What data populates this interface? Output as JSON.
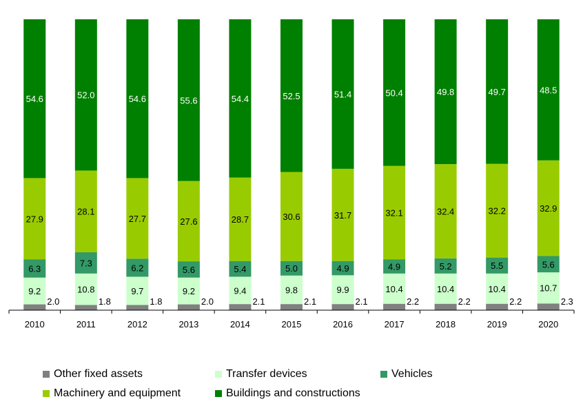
{
  "chart_data": {
    "type": "bar",
    "stacked": true,
    "categories": [
      "2010",
      "2011",
      "2012",
      "2013",
      "2014",
      "2015",
      "2016",
      "2017",
      "2018",
      "2019",
      "2020"
    ],
    "series": [
      {
        "name": "Other fixed assets",
        "color": "#808080",
        "values": [
          2.0,
          1.8,
          1.8,
          2.0,
          2.1,
          2.1,
          2.1,
          2.2,
          2.2,
          2.2,
          2.3
        ]
      },
      {
        "name": "Transfer devices",
        "color": "#ccffcc",
        "values": [
          9.2,
          10.8,
          9.7,
          9.2,
          9.4,
          9.8,
          9.9,
          10.4,
          10.4,
          10.4,
          10.7
        ]
      },
      {
        "name": "Vehicles",
        "color": "#339966",
        "values": [
          6.3,
          7.3,
          6.2,
          5.6,
          5.4,
          5.0,
          4.9,
          4.9,
          5.2,
          5.5,
          5.6
        ]
      },
      {
        "name": "Machinery and equipment",
        "color": "#99cc00",
        "values": [
          27.9,
          28.1,
          27.7,
          27.6,
          28.7,
          30.6,
          31.7,
          32.1,
          32.4,
          32.2,
          32.9
        ]
      },
      {
        "name": "Buildings and constructions",
        "color": "#008000",
        "values": [
          54.6,
          52.0,
          54.6,
          55.6,
          54.4,
          52.5,
          51.4,
          50.4,
          49.8,
          49.7,
          48.5
        ]
      }
    ],
    "value_labels": [
      [
        "2.0",
        "9.2",
        "6.3",
        "27.9",
        "54.6"
      ],
      [
        "1.8",
        "10.8",
        "7.3",
        "28.1",
        "52.0"
      ],
      [
        "1.8",
        "9.7",
        "6.2",
        "27.7",
        "54.6"
      ],
      [
        "2.0",
        "9.2",
        "5.6",
        "27.6",
        "55.6"
      ],
      [
        "2.1",
        "9.4",
        "5.4",
        "28.7",
        "54.4"
      ],
      [
        "2.1",
        "9.8",
        "5.0",
        "30.6",
        "52.5"
      ],
      [
        "2.1",
        "9.9",
        "4.9",
        "31.7",
        "51.4"
      ],
      [
        "2.2",
        "10.4",
        "4.9",
        "32.1",
        "50.4"
      ],
      [
        "2.2",
        "10.4",
        "5.2",
        "32.4",
        "49.8"
      ],
      [
        "2.2",
        "10.4",
        "5.5",
        "32.2",
        "49.7"
      ],
      [
        "2.3",
        "10.7",
        "5.6",
        "32.9",
        "48.5"
      ]
    ],
    "ylim": [
      0,
      100
    ],
    "grid": false,
    "legend_position": "bottom"
  }
}
